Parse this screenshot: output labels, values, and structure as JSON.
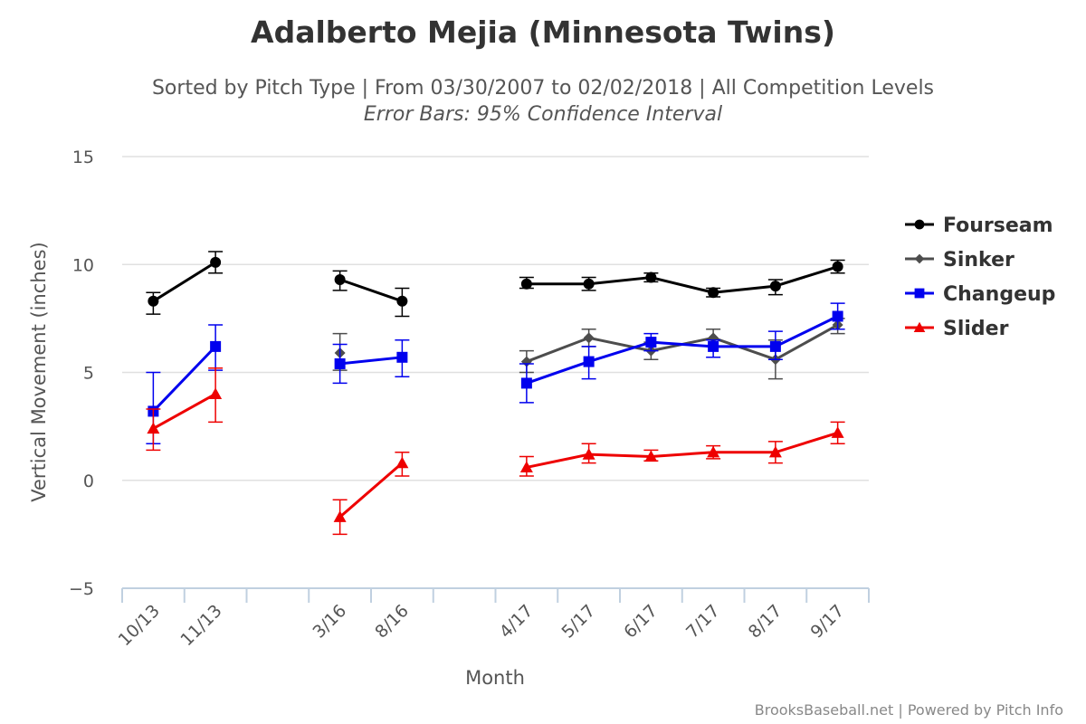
{
  "chart_data": {
    "type": "line",
    "title": "Adalberto Mejia (Minnesota Twins)",
    "subtitle": "Sorted by Pitch Type | From 03/30/2007 to 02/02/2018 | All Competition Levels",
    "subtitle2": "Error Bars: 95% Confidence Interval",
    "xlabel": "Month",
    "ylabel": "Vertical Movement (inches)",
    "ylim": [
      -5,
      15
    ],
    "yticks": [
      -5,
      0,
      5,
      10,
      15
    ],
    "categories": [
      "10/13",
      "11/13",
      "",
      "3/16",
      "8/16",
      "",
      "4/17",
      "5/17",
      "6/17",
      "7/17",
      "8/17",
      "9/17"
    ],
    "grid": true,
    "legend_position": "right",
    "credits": "BrooksBaseball.net | Powered by Pitch Info",
    "series": [
      {
        "name": "Fourseam",
        "color": "#000000",
        "marker": "circle",
        "values": [
          8.3,
          10.1,
          null,
          9.3,
          8.3,
          null,
          9.1,
          9.1,
          9.4,
          8.7,
          9.0,
          9.9
        ],
        "lower": [
          7.7,
          9.6,
          null,
          8.8,
          7.6,
          null,
          8.9,
          8.8,
          9.2,
          8.5,
          8.6,
          9.6
        ],
        "upper": [
          8.7,
          10.6,
          null,
          9.7,
          8.9,
          null,
          9.4,
          9.4,
          9.6,
          8.9,
          9.3,
          10.2
        ]
      },
      {
        "name": "Sinker",
        "color": "#4d4d4d",
        "marker": "diamond",
        "values": [
          null,
          null,
          null,
          5.9,
          null,
          null,
          5.5,
          6.6,
          6.0,
          6.6,
          5.6,
          7.2
        ],
        "lower": [
          null,
          null,
          null,
          5.1,
          null,
          null,
          5.0,
          6.2,
          5.6,
          6.2,
          4.7,
          6.8
        ],
        "upper": [
          null,
          null,
          null,
          6.8,
          null,
          null,
          6.0,
          7.0,
          6.4,
          7.0,
          6.5,
          7.5
        ]
      },
      {
        "name": "Changeup",
        "color": "#0000ee",
        "marker": "square",
        "values": [
          3.2,
          6.2,
          null,
          5.4,
          5.7,
          null,
          4.5,
          5.5,
          6.4,
          6.2,
          6.2,
          7.6
        ],
        "lower": [
          1.7,
          5.1,
          null,
          4.5,
          4.8,
          null,
          3.6,
          4.7,
          6.0,
          5.7,
          5.6,
          7.0
        ],
        "upper": [
          5.0,
          7.2,
          null,
          6.3,
          6.5,
          null,
          5.4,
          6.2,
          6.8,
          6.5,
          6.9,
          8.2
        ]
      },
      {
        "name": "Slider",
        "color": "#ee0000",
        "marker": "triangle",
        "values": [
          2.4,
          4.0,
          null,
          -1.7,
          0.8,
          null,
          0.6,
          1.2,
          1.1,
          1.3,
          1.3,
          2.2
        ],
        "lower": [
          1.4,
          2.7,
          null,
          -2.5,
          0.2,
          null,
          0.2,
          0.8,
          0.9,
          1.0,
          0.8,
          1.7
        ],
        "upper": [
          3.3,
          5.2,
          null,
          -0.9,
          1.3,
          null,
          1.1,
          1.7,
          1.4,
          1.6,
          1.8,
          2.7
        ]
      }
    ]
  }
}
